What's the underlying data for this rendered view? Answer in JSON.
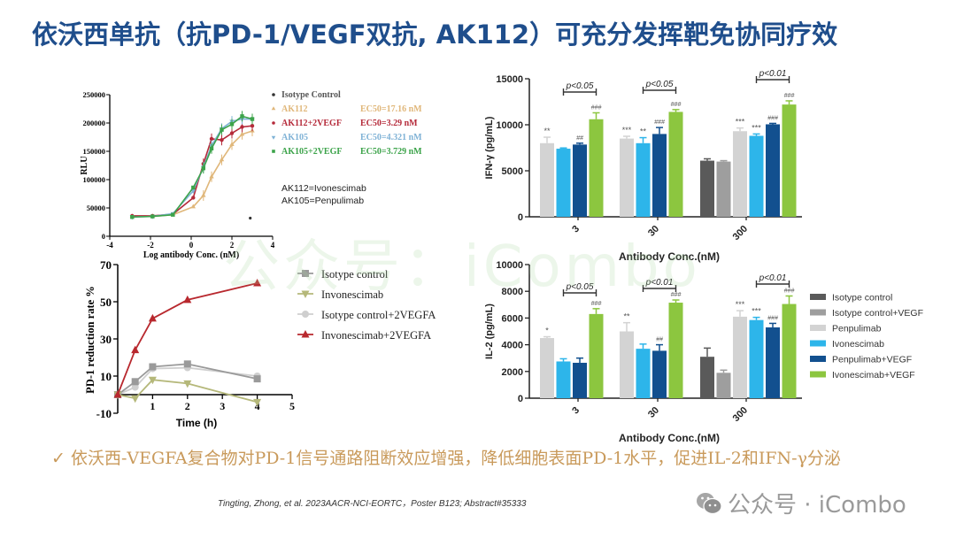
{
  "header": {
    "title": "依沃西单抗（抗PD-1/VEGF双抗, AK112）可充分发挥靶免协同疗效"
  },
  "watermark": "公众号：iCombo",
  "conclusion": {
    "check_icon": "✓",
    "text": "依沃西-VEGFA复合物对PD-1信号通路阻断效应增强，降低细胞表面PD-1水平，促进IL-2和IFN-γ分泌"
  },
  "citation": "Tingting, Zhong, et al. 2023AACR-NCI-EORTC，Poster B123; Abstract#35333",
  "brand": {
    "icon": "wechat-icon",
    "text": "公众号 · iCombo"
  },
  "chart_data": [
    {
      "id": "rlu_dose_response",
      "type": "line",
      "title": "",
      "xlabel": "Log antibody Conc. (nM)",
      "ylabel": "RLU",
      "xlim": [
        -4,
        4
      ],
      "ylim": [
        0,
        250000
      ],
      "xticks": [
        -4,
        -2,
        0,
        2,
        4
      ],
      "yticks": [
        0,
        50000,
        100000,
        150000,
        200000,
        250000
      ],
      "x": [
        -2.9,
        -1.9,
        -0.9,
        0.1,
        0.6,
        1.0,
        1.5,
        2.0,
        2.5,
        3.0
      ],
      "series": [
        {
          "name": "Isotype Control",
          "color": "#333333",
          "ec50": "",
          "points": [
            [
              2.9,
              32000
            ]
          ]
        },
        {
          "name": "AK112",
          "color": "#e0b77a",
          "ec50": "EC50=17.16 nM",
          "values": [
            35000,
            35000,
            38000,
            52000,
            72000,
            105000,
            135000,
            162000,
            180000,
            186000
          ]
        },
        {
          "name": "AK112+2VEGF",
          "color": "#b52a3a",
          "ec50": "EC50=3.29 nM",
          "values": [
            36000,
            36000,
            39000,
            68000,
            128000,
            172000,
            170000,
            182000,
            193000,
            195000
          ]
        },
        {
          "name": "AK105",
          "color": "#7fb2d6",
          "ec50": "EC50=4.321 nM",
          "values": [
            34000,
            35000,
            40000,
            80000,
            122000,
            160000,
            190000,
            203000,
            207000,
            207000
          ]
        },
        {
          "name": "AK105+2VEGF",
          "color": "#3ca34a",
          "ec50": "EC50=3.729 nM",
          "values": [
            34000,
            35000,
            38000,
            86000,
            120000,
            155000,
            188000,
            198000,
            212000,
            207000
          ]
        }
      ],
      "annotations": [
        "AK112=Ivonescimab",
        "AK105=Penpulimab"
      ]
    },
    {
      "id": "pd1_reduction",
      "type": "line",
      "title": "",
      "xlabel": "Time (h)",
      "ylabel": "PD-1 reduction rate %",
      "xlim": [
        0,
        5
      ],
      "ylim": [
        -10,
        70
      ],
      "xticks": [
        1,
        2,
        3,
        4,
        5
      ],
      "yticks": [
        -10,
        10,
        30,
        50,
        70
      ],
      "x": [
        0,
        0.5,
        1,
        2,
        4
      ],
      "series": [
        {
          "name": "Isotype control",
          "color": "#9a9a9a",
          "marker": "square",
          "values": [
            0,
            7,
            15,
            16.5,
            8.5
          ]
        },
        {
          "name": "Invonescimab",
          "color": "#b5b87a",
          "marker": "triangle-down",
          "values": [
            0,
            -2,
            8,
            6,
            -4
          ]
        },
        {
          "name": "Isotype control+2VEGFA",
          "color": "#cfcfcf",
          "marker": "circle",
          "values": [
            0,
            4,
            14,
            14.5,
            10
          ]
        },
        {
          "name": "Invonescimab+2VEGFA",
          "color": "#b8282e",
          "marker": "triangle-up",
          "values": [
            0,
            24,
            41,
            51,
            60
          ]
        }
      ]
    },
    {
      "id": "ifn_gamma",
      "type": "bar",
      "title": "",
      "xlabel": "Antibody Conc.(nM)",
      "ylabel": "IFN-γ (pg/mL)",
      "ylim": [
        0,
        15000
      ],
      "yticks": [
        0,
        5000,
        10000,
        15000
      ],
      "categories": [
        "3",
        "30",
        "300"
      ],
      "series": [
        {
          "name": "Isotype control",
          "color": "#5a5a5a",
          "values": [
            null,
            null,
            6100
          ],
          "err": [
            0,
            0,
            200
          ],
          "sig": [
            "",
            "",
            ""
          ]
        },
        {
          "name": "Isotype control+VEGF",
          "color": "#9e9e9e",
          "values": [
            null,
            null,
            6000
          ],
          "err": [
            0,
            0,
            100
          ],
          "sig": [
            "",
            "",
            ""
          ]
        },
        {
          "name": "Penpulimab",
          "color": "#d3d3d3",
          "values": [
            8000,
            8500,
            9300
          ],
          "err": [
            650,
            250,
            350
          ],
          "sig": [
            "**",
            "***",
            "***"
          ]
        },
        {
          "name": "Ivonescimab",
          "color": "#2db5ea",
          "values": [
            7400,
            8000,
            8800
          ],
          "err": [
            80,
            600,
            200
          ],
          "sig": [
            "",
            "**",
            "***"
          ]
        },
        {
          "name": "Penpulimab+VEGF",
          "color": "#12508f",
          "values": [
            7850,
            9000,
            10050
          ],
          "err": [
            150,
            700,
            100
          ],
          "sig": [
            "##",
            "###",
            "###"
          ]
        },
        {
          "name": "Ivonescimab+VEGF",
          "color": "#8cc63f",
          "values": [
            10600,
            11400,
            12200
          ],
          "err": [
            700,
            250,
            400
          ],
          "sig": [
            "###",
            "###",
            "###"
          ]
        }
      ],
      "brackets": [
        "p<0.05",
        "p<0.05",
        "p<0.01"
      ]
    },
    {
      "id": "il2",
      "type": "bar",
      "title": "",
      "xlabel": "Antibody Conc.(nM)",
      "ylabel": "IL-2 (pg/mL)",
      "ylim": [
        0,
        10000
      ],
      "yticks": [
        0,
        2000,
        4000,
        6000,
        8000,
        10000
      ],
      "categories": [
        "3",
        "30",
        "300"
      ],
      "series": [
        {
          "name": "Isotype control",
          "color": "#5a5a5a",
          "values": [
            null,
            null,
            3100
          ],
          "err": [
            0,
            0,
            650
          ],
          "sig": [
            "",
            "",
            ""
          ]
        },
        {
          "name": "Isotype control+VEGF",
          "color": "#9e9e9e",
          "values": [
            null,
            null,
            1900
          ],
          "err": [
            0,
            0,
            200
          ],
          "sig": [
            "",
            "",
            ""
          ]
        },
        {
          "name": "Penpulimab",
          "color": "#d3d3d3",
          "values": [
            4500,
            5000,
            6100
          ],
          "err": [
            100,
            650,
            450
          ],
          "sig": [
            "*",
            "**",
            "***"
          ]
        },
        {
          "name": "Ivonescimab",
          "color": "#2db5ea",
          "values": [
            2750,
            3700,
            5850
          ],
          "err": [
            200,
            350,
            200
          ],
          "sig": [
            "",
            "",
            "***"
          ]
        },
        {
          "name": "Penpulimab+VEGF",
          "color": "#12508f",
          "values": [
            2650,
            3550,
            5300
          ],
          "err": [
            350,
            450,
            300
          ],
          "sig": [
            "",
            "##",
            "###"
          ]
        },
        {
          "name": "Ivonescimab+VEGF",
          "color": "#8cc63f",
          "values": [
            6300,
            7150,
            7050
          ],
          "err": [
            400,
            200,
            600
          ],
          "sig": [
            "###",
            "###",
            "###"
          ]
        }
      ],
      "brackets": [
        "p<0.05",
        "p<0.01",
        "p<0.01"
      ]
    }
  ]
}
